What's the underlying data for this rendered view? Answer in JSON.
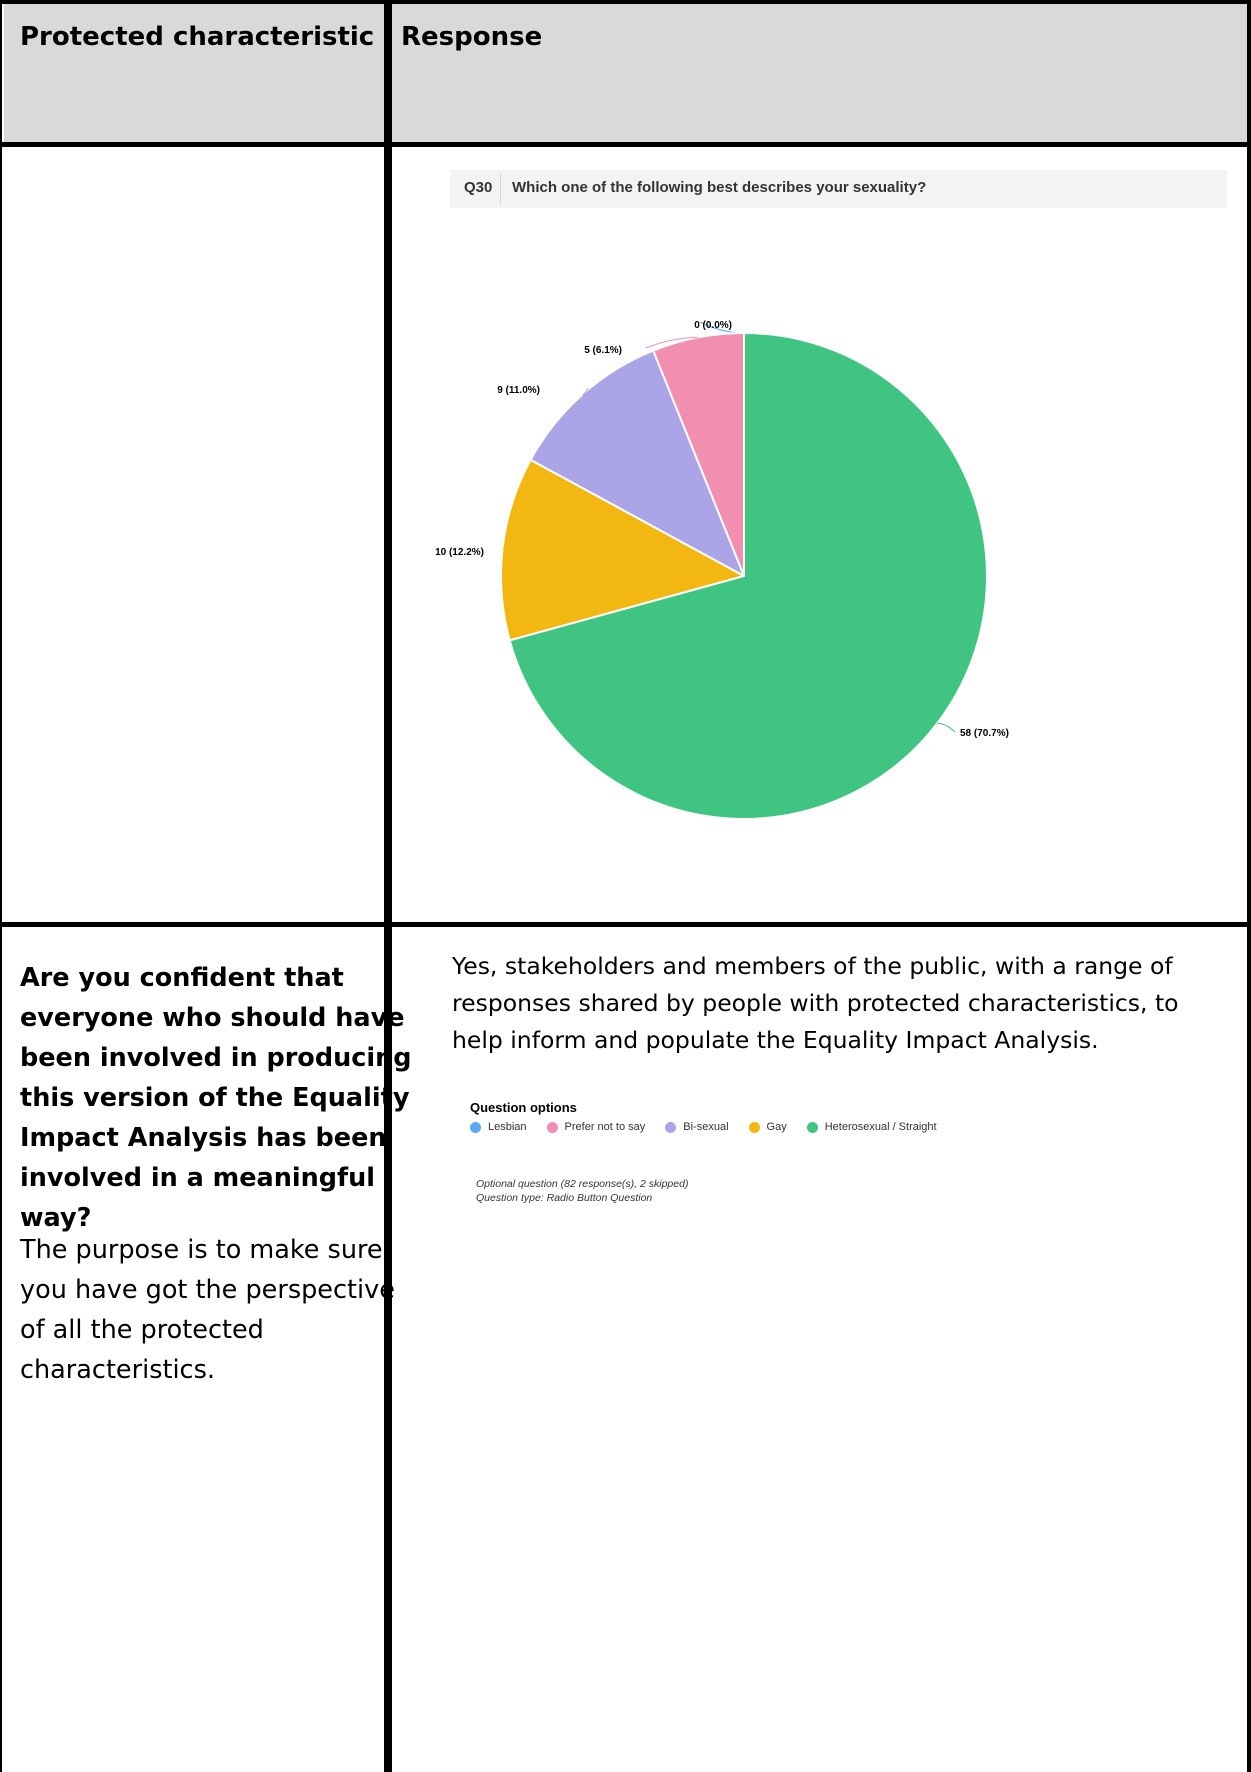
{
  "table": {
    "header": {
      "col1": "Protected characteristic",
      "col2": "Response"
    },
    "question_cell": {
      "question_lines": [
        "Are you confident that",
        "everyone who should have",
        "been involved in producing",
        "this version of the Equality",
        "Impact Analysis has been",
        "involved in a meaningful way?"
      ],
      "purpose_lines": [
        "The purpose is to make sure",
        "you have got the perspective",
        "of all the protected",
        "characteristics."
      ]
    },
    "response_lines": [
      "Yes, stakeholders and members of the public, with a range of",
      "responses shared by people with protected characteristics, to",
      "help inform and populate the Equality Impact Analysis."
    ]
  },
  "survey": {
    "question_number": "Q30",
    "question_title": "Which one of the following best describes your sexuality?",
    "legend_title": "Question options",
    "note_line1": "Optional question (82 response(s), 2 skipped)",
    "note_line2": "Question type: Radio Button Question"
  },
  "chart_data": {
    "type": "pie",
    "series": [
      {
        "name": "Lesbian",
        "value": 0,
        "label": "0 (0.0%)",
        "color": "#5aabf2"
      },
      {
        "name": "Prefer not to say",
        "value": 5,
        "label": "5 (6.1%)",
        "color": "#f28fb0"
      },
      {
        "name": "Bi-sexual",
        "value": 9,
        "label": "9 (11.0%)",
        "color": "#aba4e6"
      },
      {
        "name": "Gay",
        "value": 10,
        "label": "10 (12.2%)",
        "color": "#f2b811"
      },
      {
        "name": "Heterosexual / Straight",
        "value": 58,
        "label": "58 (70.7%)",
        "color": "#40c482"
      }
    ]
  }
}
